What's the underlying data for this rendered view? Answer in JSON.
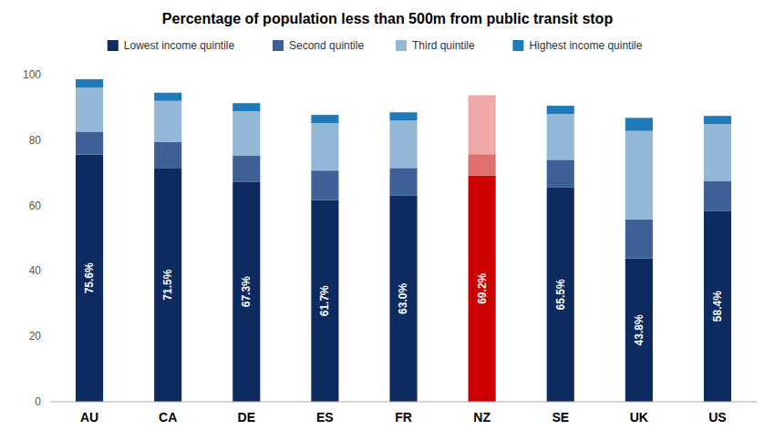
{
  "chart_data": {
    "type": "bar",
    "title": "Percentage of population less than 500m from public transit stop",
    "categories": [
      "AU",
      "CA",
      "DE",
      "ES",
      "FR",
      "NZ",
      "SE",
      "UK",
      "US"
    ],
    "stacked": true,
    "series": [
      {
        "name": "Lowest income quintile",
        "color": "#0d2b5e",
        "colors": [
          "#0d2b5e",
          "#0d2b5e",
          "#0d2b5e",
          "#0d2b5e",
          "#0d2b5e",
          "#cc0000",
          "#0d2b5e",
          "#0d2b5e",
          "#0d2b5e"
        ],
        "values": [
          75.6,
          71.5,
          67.3,
          61.7,
          63.0,
          69.2,
          65.5,
          43.8,
          58.4
        ],
        "data_labels": true,
        "value_labels": [
          "75.6%",
          "71.5%",
          "67.3%",
          "61.7%",
          "63.0%",
          "69.2%",
          "65.5%",
          "43.8%",
          "58.4%"
        ]
      },
      {
        "name": "Second quintile",
        "color": "#3d6096",
        "colors": [
          "#3d6096",
          "#3d6096",
          "#3d6096",
          "#3d6096",
          "#3d6096",
          "#e07070",
          "#3d6096",
          "#3d6096",
          "#3d6096"
        ],
        "values": [
          7.0,
          8.0,
          8.0,
          9.0,
          8.5,
          6.5,
          8.5,
          12.0,
          9.0
        ]
      },
      {
        "name": "Third quintile",
        "color": "#92b8d8",
        "colors": [
          "#92b8d8",
          "#92b8d8",
          "#92b8d8",
          "#92b8d8",
          "#92b8d8",
          "#f0a8a8",
          "#92b8d8",
          "#92b8d8",
          "#92b8d8"
        ],
        "values": [
          13.5,
          12.5,
          13.5,
          14.5,
          14.5,
          14.0,
          14.0,
          27.0,
          17.5
        ]
      },
      {
        "name": "Highest income quintile",
        "color": "#1e7ab8",
        "colors": [
          "#1e7ab8",
          "#1e7ab8",
          "#1e7ab8",
          "#1e7ab8",
          "#1e7ab8",
          "#f0a8a8",
          "#1e7ab8",
          "#1e7ab8",
          "#1e7ab8"
        ],
        "values": [
          2.5,
          2.5,
          2.5,
          2.5,
          2.5,
          4.0,
          2.5,
          4.0,
          2.5
        ]
      }
    ],
    "ylim": [
      0,
      100
    ],
    "yticks": [
      0,
      20,
      40,
      60,
      80,
      100
    ],
    "grid": false,
    "legend": "top"
  }
}
